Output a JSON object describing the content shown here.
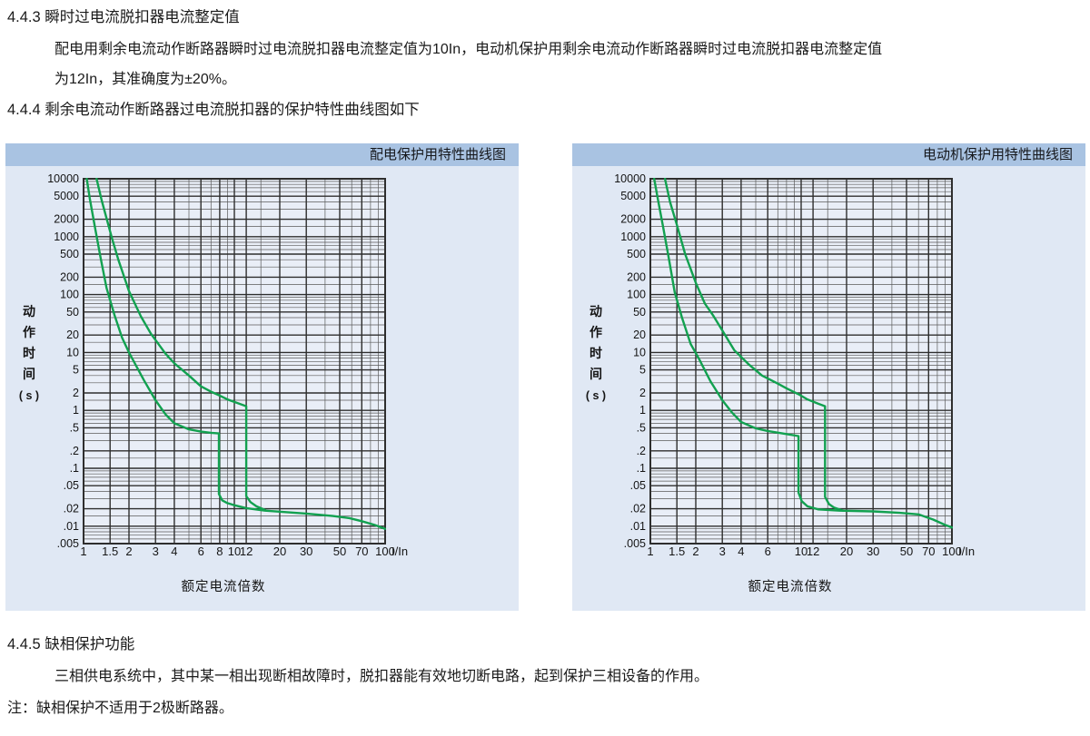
{
  "text": {
    "s443_heading": "4.4.3 瞬时过电流脱扣器电流整定值",
    "s443_para_line1": "配电用剩余电流动作断路器瞬时过电流脱扣器电流整定值为10In，电动机保护用剩余电流动作断路器瞬时过电流脱扣器电流整定值",
    "s443_para_line2": "为12In，其准确度为±20%。",
    "s444_heading": "4.4.4 剩余电流动作断路器过电流脱扣器的保护特性曲线图如下",
    "s445_heading": "4.4.5 缺相保护功能",
    "s445_para": "三相供电系统中，其中某一相出现断相故障时，脱扣器能有效地切断电路，起到保护三相设备的作用。",
    "s445_note": "注：缺相保护不适用于2极断路器。"
  },
  "colors": {
    "header_bar": "#a9c3e2",
    "panel_bg": "#e0e8f4",
    "plot_bg": "#e9eef7",
    "grid_major": "#2e2e2e",
    "grid_minor": "#5a5a5a",
    "curve": "#12a150",
    "text": "#1a1a1a"
  },
  "chart_data": [
    {
      "type": "line",
      "title": "配电保护用特性曲线图",
      "xlabel": "额定电流倍数",
      "x_unit": "I/In",
      "ylabel": "动作时间(s)",
      "ylabel_stack": [
        "动",
        "作",
        "时",
        "间",
        "( s )"
      ],
      "x_scale": "log",
      "y_scale": "log",
      "xlim": [
        1,
        100
      ],
      "ylim": [
        0.005,
        10000
      ],
      "grid": true,
      "legend": "none",
      "x_ticks": [
        "1",
        "1.5",
        "2",
        "3",
        "4",
        "6",
        "8",
        "10",
        "12",
        "20",
        "30",
        "50",
        "70",
        "100"
      ],
      "y_ticks": [
        "10000",
        "5000",
        "2000",
        "1000",
        "500",
        "200",
        "100",
        "50",
        "20",
        "10",
        "5",
        "2",
        "1",
        ".5",
        ".2",
        ".1",
        ".05",
        ".02",
        ".01",
        ".005"
      ],
      "instantaneous_setting": "10In ±20%",
      "series": [
        {
          "name": "min_trip_curve",
          "points": [
            [
              1.05,
              10000
            ],
            [
              1.1,
              4500
            ],
            [
              1.2,
              1300
            ],
            [
              1.3,
              420
            ],
            [
              1.42,
              130
            ],
            [
              1.6,
              45
            ],
            [
              1.8,
              18
            ],
            [
              2,
              10
            ],
            [
              2.5,
              3.4
            ],
            [
              3,
              1.5
            ],
            [
              3.5,
              0.85
            ],
            [
              4,
              0.6
            ],
            [
              5,
              0.47
            ],
            [
              6,
              0.43
            ],
            [
              7,
              0.41
            ],
            [
              7.9,
              0.4
            ],
            [
              7.9,
              0.036
            ],
            [
              8.3,
              0.028
            ],
            [
              9,
              0.025
            ],
            [
              10,
              0.023
            ],
            [
              12,
              0.0205
            ],
            [
              16,
              0.0185
            ],
            [
              30,
              0.0165
            ],
            [
              45,
              0.015
            ],
            [
              58,
              0.0138
            ],
            [
              70,
              0.0122
            ],
            [
              85,
              0.0105
            ],
            [
              100,
              0.009
            ]
          ]
        },
        {
          "name": "max_trip_curve",
          "points": [
            [
              1.22,
              10000
            ],
            [
              1.32,
              4200
            ],
            [
              1.45,
              1700
            ],
            [
              1.55,
              900
            ],
            [
              1.7,
              400
            ],
            [
              2,
              115
            ],
            [
              2.4,
              42
            ],
            [
              2.8,
              21
            ],
            [
              3.5,
              9.5
            ],
            [
              4,
              6.5
            ],
            [
              5,
              4.0
            ],
            [
              6,
              2.6
            ],
            [
              7,
              2.1
            ],
            [
              8,
              1.8
            ],
            [
              9,
              1.55
            ],
            [
              10,
              1.4
            ],
            [
              11,
              1.28
            ],
            [
              12,
              1.18
            ],
            [
              12,
              0.033
            ],
            [
              12.8,
              0.026
            ],
            [
              14,
              0.022
            ],
            [
              16,
              0.019
            ]
          ]
        }
      ]
    },
    {
      "type": "line",
      "title": "电动机保护用特性曲线图",
      "xlabel": "额定电流倍数",
      "x_unit": "I/In",
      "ylabel": "动作时间(s)",
      "ylabel_stack": [
        "动",
        "作",
        "时",
        "间",
        "( s )"
      ],
      "x_scale": "log",
      "y_scale": "log",
      "xlim": [
        1,
        100
      ],
      "ylim": [
        0.005,
        10000
      ],
      "grid": true,
      "legend": "none",
      "x_ticks": [
        "1",
        "1.5",
        "2",
        "3",
        "4",
        "6",
        "10",
        "12",
        "20",
        "30",
        "50",
        "70",
        "100"
      ],
      "y_ticks": [
        "10000",
        "5000",
        "2000",
        "1000",
        "500",
        "200",
        "100",
        "50",
        "20",
        "10",
        "5",
        "2",
        "1",
        ".5",
        ".2",
        ".1",
        ".05",
        ".02",
        ".01",
        ".005"
      ],
      "instantaneous_setting": "12In ±20%",
      "series": [
        {
          "name": "min_trip_curve",
          "points": [
            [
              1.06,
              10000
            ],
            [
              1.12,
              4500
            ],
            [
              1.22,
              1400
            ],
            [
              1.32,
              450
            ],
            [
              1.45,
              110
            ],
            [
              1.62,
              40
            ],
            [
              1.85,
              14
            ],
            [
              2.1,
              7.8
            ],
            [
              2.5,
              3.2
            ],
            [
              3,
              1.5
            ],
            [
              3.5,
              0.9
            ],
            [
              4,
              0.63
            ],
            [
              5,
              0.49
            ],
            [
              6,
              0.44
            ],
            [
              8,
              0.39
            ],
            [
              9.6,
              0.36
            ],
            [
              9.6,
              0.038
            ],
            [
              10.1,
              0.027
            ],
            [
              11,
              0.022
            ],
            [
              13,
              0.0195
            ],
            [
              18,
              0.0185
            ],
            [
              30,
              0.018
            ],
            [
              45,
              0.017
            ],
            [
              60,
              0.016
            ],
            [
              75,
              0.013
            ],
            [
              90,
              0.0105
            ],
            [
              100,
              0.0095
            ]
          ]
        },
        {
          "name": "max_trip_curve",
          "points": [
            [
              1.25,
              10000
            ],
            [
              1.35,
              4000
            ],
            [
              1.5,
              1600
            ],
            [
              1.7,
              500
            ],
            [
              2,
              160
            ],
            [
              2.3,
              70
            ],
            [
              2.6,
              44
            ],
            [
              3,
              24
            ],
            [
              3.6,
              11
            ],
            [
              4.5,
              6.2
            ],
            [
              5.5,
              4.0
            ],
            [
              7,
              2.9
            ],
            [
              8,
              2.4
            ],
            [
              9.6,
              1.9
            ],
            [
              11,
              1.55
            ],
            [
              13,
              1.3
            ],
            [
              14.4,
              1.18
            ],
            [
              14.4,
              0.032
            ],
            [
              15.3,
              0.024
            ],
            [
              16.5,
              0.021
            ],
            [
              19,
              0.0185
            ]
          ]
        }
      ]
    }
  ]
}
